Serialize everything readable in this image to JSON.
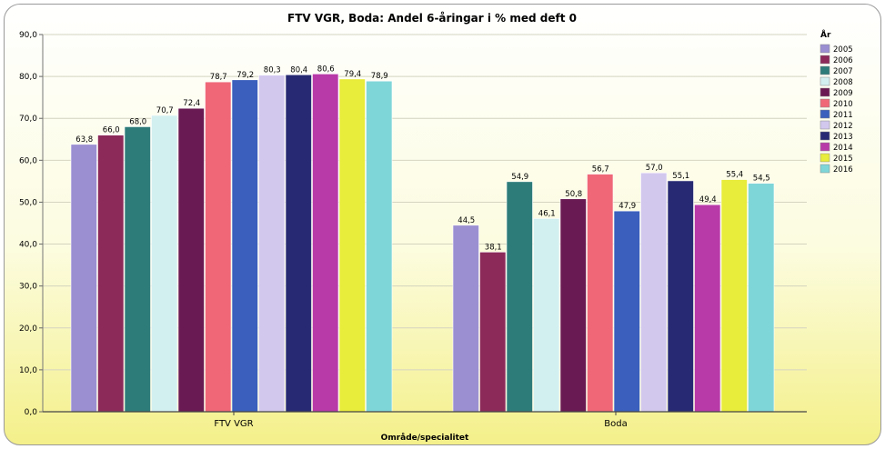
{
  "chart_data": {
    "type": "bar",
    "title": "FTV VGR, Boda: Andel 6-åringar i % med deft 0",
    "xlabel": "Område/specialitet",
    "ylabel": "",
    "ylim": [
      0,
      90
    ],
    "yticks": [
      "0,0",
      "10,0",
      "20,0",
      "30,0",
      "40,0",
      "50,0",
      "60,0",
      "70,0",
      "80,0",
      "90,0"
    ],
    "grid": true,
    "legend_title": "År",
    "legend_position": "right",
    "categories": [
      "FTV VGR",
      "Boda"
    ],
    "series": [
      {
        "name": "2005",
        "color": "#9b8fd2",
        "values": [
          63.8,
          44.5
        ],
        "labels": [
          "63,8",
          "44,5"
        ]
      },
      {
        "name": "2006",
        "color": "#8c2a5a",
        "values": [
          66.0,
          38.1
        ],
        "labels": [
          "66,0",
          "38,1"
        ]
      },
      {
        "name": "2007",
        "color": "#2e7c7a",
        "values": [
          68.0,
          54.9
        ],
        "labels": [
          "68,0",
          "54,9"
        ]
      },
      {
        "name": "2008",
        "color": "#d3f0f0",
        "values": [
          70.7,
          46.1
        ],
        "labels": [
          "70,7",
          "46,1"
        ]
      },
      {
        "name": "2009",
        "color": "#6a1a52",
        "values": [
          72.4,
          50.8
        ],
        "labels": [
          "72,4",
          "50,8"
        ]
      },
      {
        "name": "2010",
        "color": "#f06878",
        "values": [
          78.7,
          56.7
        ],
        "labels": [
          "78,7",
          "56,7"
        ]
      },
      {
        "name": "2011",
        "color": "#3a5fbc",
        "values": [
          79.2,
          47.9
        ],
        "labels": [
          "79,2",
          "47,9"
        ]
      },
      {
        "name": "2012",
        "color": "#d2c8ee",
        "values": [
          80.3,
          57.0
        ],
        "labels": [
          "80,3",
          "57,0"
        ]
      },
      {
        "name": "2013",
        "color": "#272a72",
        "values": [
          80.4,
          55.1
        ],
        "labels": [
          "80,4",
          "55,1"
        ]
      },
      {
        "name": "2014",
        "color": "#b83aa8",
        "values": [
          80.6,
          49.4
        ],
        "labels": [
          "80,6",
          "49,4"
        ]
      },
      {
        "name": "2015",
        "color": "#e8ec3a",
        "values": [
          79.4,
          55.4
        ],
        "labels": [
          "79,4",
          "55,4"
        ]
      },
      {
        "name": "2016",
        "color": "#7fd6d8",
        "values": [
          78.9,
          54.5
        ],
        "labels": [
          "78,9",
          "54,5"
        ]
      }
    ]
  }
}
